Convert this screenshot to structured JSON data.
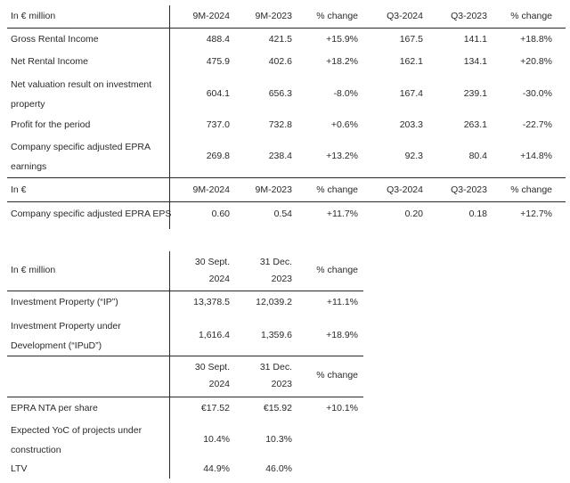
{
  "table1": {
    "header": [
      "In € million",
      "9M-2024",
      "9M-2023",
      "% change",
      "Q3-2024",
      "Q3-2023",
      "% change"
    ],
    "rows": [
      [
        "Gross Rental Income",
        "488.4",
        "421.5",
        "+15.9%",
        "167.5",
        "141.1",
        "+18.8%"
      ],
      [
        "Net Rental Income",
        "475.9",
        "402.6",
        "+18.2%",
        "162.1",
        "134.1",
        "+20.8%"
      ],
      [
        "Net valuation result on investment property",
        "604.1",
        "656.3",
        "-8.0%",
        "167.4",
        "239.1",
        "-30.0%"
      ],
      [
        "Profit for the period",
        "737.0",
        "732.8",
        "+0.6%",
        "203.3",
        "263.1",
        "-22.7%"
      ],
      [
        "Company specific adjusted EPRA earnings",
        "269.8",
        "238.4",
        "+13.2%",
        "92.3",
        "80.4",
        "+14.8%"
      ]
    ],
    "header2": [
      "In €",
      "9M-2024",
      "9M-2023",
      "% change",
      "Q3-2024",
      "Q3-2023",
      "% change"
    ],
    "rows2": [
      [
        "Company specific adjusted EPRA EPS",
        "0.60",
        "0.54",
        "+11.7%",
        "0.20",
        "0.18",
        "+12.7%"
      ]
    ]
  },
  "table2": {
    "header": {
      "label": "In € million",
      "col1": [
        "30 Sept.",
        "2024"
      ],
      "col2": [
        "31 Dec.",
        "2023"
      ],
      "col3": "% change"
    },
    "rows": [
      [
        "Investment Property (“IP”)",
        "13,378.5",
        "12,039.2",
        "+11.1%"
      ],
      [
        "Investment Property under Development (“IPuD”)",
        "1,616.4",
        "1,359.6",
        "+18.9%"
      ]
    ],
    "header2": {
      "col1": [
        "30 Sept.",
        "2024"
      ],
      "col2": [
        "31 Dec.",
        "2023"
      ],
      "col3": "% change"
    },
    "rows2": [
      [
        "EPRA NTA per share",
        "€17.52",
        "€15.92",
        "+10.1%"
      ],
      [
        "Expected YoC of projects under construction",
        "10.4%",
        "10.3%",
        ""
      ],
      [
        "LTV",
        "44.9%",
        "46.0%",
        ""
      ]
    ]
  }
}
